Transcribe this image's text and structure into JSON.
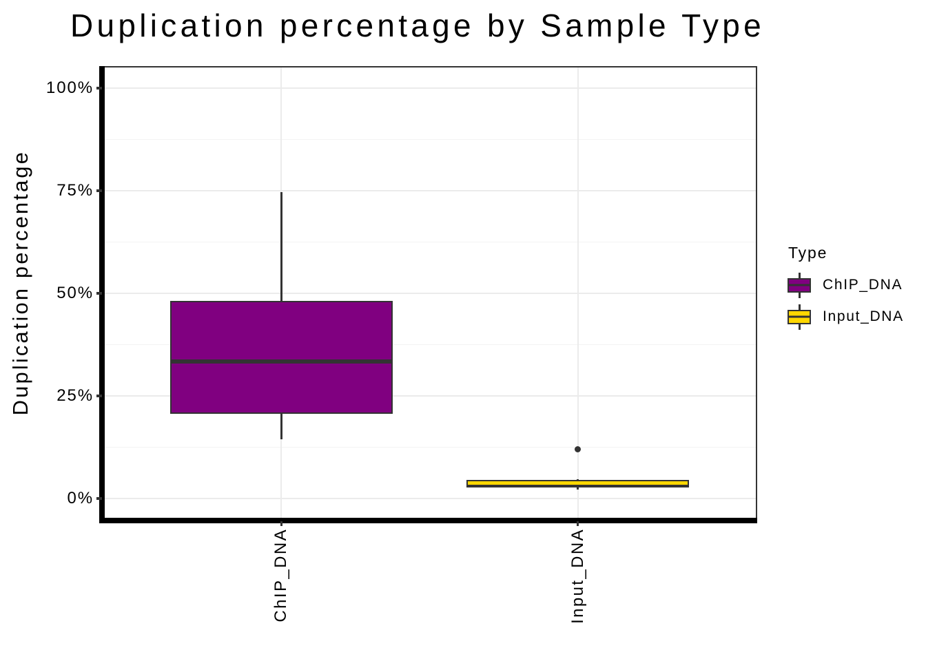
{
  "chart_data": {
    "type": "boxplot",
    "title": "Duplication percentage by Sample Type",
    "xlabel": "",
    "ylabel": "Duplication percentage",
    "ylim": [
      0,
      100
    ],
    "y_ticks": [
      {
        "value": 0,
        "label": "0%"
      },
      {
        "value": 25,
        "label": "25%"
      },
      {
        "value": 50,
        "label": "50%"
      },
      {
        "value": 75,
        "label": "75%"
      },
      {
        "value": 100,
        "label": "100%"
      }
    ],
    "y_minor": [
      12.5,
      37.5,
      62.5,
      87.5
    ],
    "categories": [
      "ChIP_DNA",
      "Input_DNA"
    ],
    "grid": "on",
    "legend": {
      "title": "Type",
      "position": "right",
      "entries": [
        {
          "label": "ChIP_DNA",
          "fill": "#800080"
        },
        {
          "label": "Input_DNA",
          "fill": "#FFD700"
        }
      ]
    },
    "series": [
      {
        "name": "ChIP_DNA",
        "fill": "#800080",
        "stats": {
          "whisker_low": 14.4,
          "q1": 20.6,
          "median": 33.3,
          "q3": 48.2,
          "whisker_high": 74.6
        },
        "outliers": []
      },
      {
        "name": "Input_DNA",
        "fill": "#FFD700",
        "stats": {
          "whisker_low": 2.2,
          "q1": 2.7,
          "median": 3.1,
          "q3": 4.6,
          "whisker_high": 4.8
        },
        "outliers": [
          12.1
        ]
      }
    ],
    "colors": {
      "box_border": "#333333",
      "median": "#333333",
      "outlier": "#333333",
      "grid_major": "#ebebeb",
      "grid_minor": "#f3f3f3",
      "axis_line": "#000000",
      "panel_border": "#333333",
      "text": "#000000"
    }
  }
}
